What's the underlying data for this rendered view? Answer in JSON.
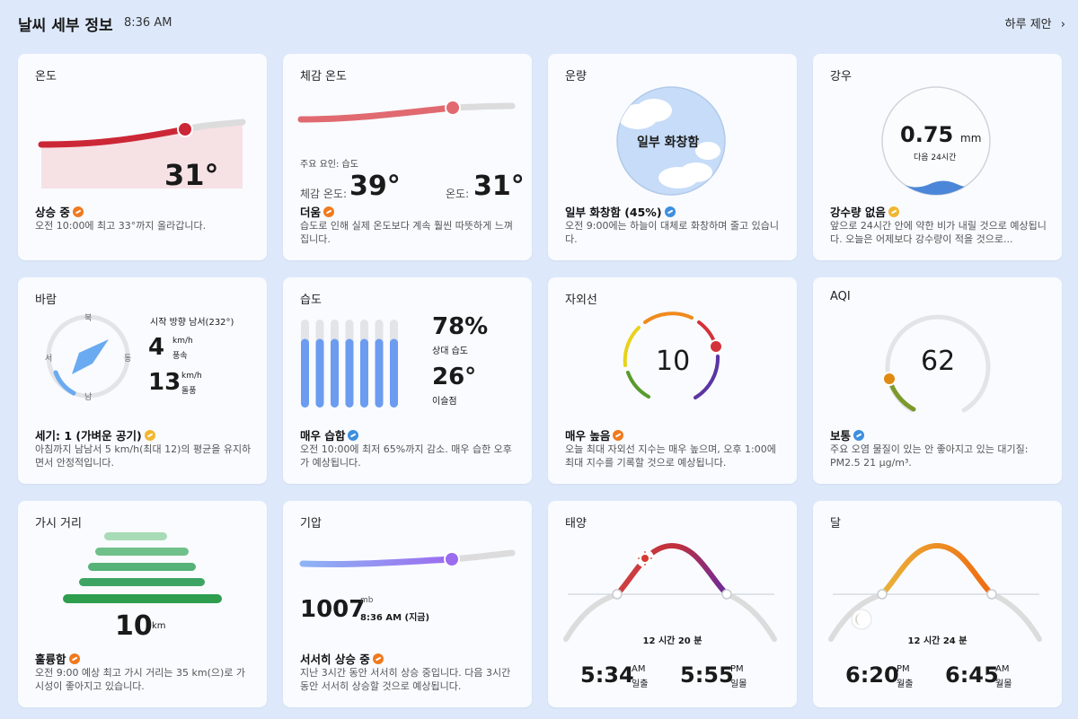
{
  "header": {
    "title": "날씨 세부 정보",
    "time": "8:36 AM",
    "daily_link": "하루 제안",
    "chevron_icon": "chevron-right-icon"
  },
  "temperature": {
    "title": "온도",
    "value": "31°",
    "status": "상승 중",
    "status_icon": "trend-up-icon",
    "desc": "오전 10:00에 최고 33°까지 올라갑니다."
  },
  "feels_like": {
    "title": "체감 온도",
    "factor": "주요 요인: 습도",
    "feels_label": "체감 온도:",
    "feels_value": "39°",
    "temp_label": "온도:",
    "temp_value": "31°",
    "status": "더움",
    "status_icon": "trend-up-icon",
    "desc": "습도로 인해 실제 온도보다 계속 훨씬 따뜻하게 느껴집니다."
  },
  "cloud": {
    "title": "운량",
    "circle_label": "일부 화창함",
    "status": "일부 화창함 (45%)",
    "status_icon": "trend-down-icon",
    "desc": "오전 9:00에는 하늘이 대체로 화창하며 줄고 있습니다."
  },
  "rain": {
    "title": "강우",
    "value": "0.75",
    "unit": "mm",
    "period": "다음 24시간",
    "status": "강수량 없음",
    "status_icon": "trend-flat-icon",
    "desc": "앞으로 24시간 안에 약한 비가 내릴 것으로 예상됩니다. 오늘은 어제보다 강수량이 적을 것으로..."
  },
  "wind": {
    "title": "바람",
    "compass": {
      "n": "북",
      "s": "남",
      "e": "동",
      "w": "서"
    },
    "direction": "시작 방향 남서(232°)",
    "speed_value": "4",
    "speed_unit": "km/h",
    "speed_label": "풍속",
    "gust_value": "13",
    "gust_unit": "km/h",
    "gust_label": "돌풍",
    "status": "세기: 1 (가벼운 공기)",
    "status_icon": "trend-flat-icon",
    "desc": "아침까지 남남서 5 km/h(최대 12)의 평균을 유지하면서 안정적입니다."
  },
  "humidity": {
    "title": "습도",
    "relative_value": "78%",
    "relative_label": "상대 습도",
    "dew_value": "26°",
    "dew_label": "이슬점",
    "level": 0.78,
    "status": "매우 습함",
    "status_icon": "trend-down-icon",
    "desc": "오전 10:00에 최저 65%까지 감소. 매우 습한 오후가 예상됩니다."
  },
  "uv": {
    "title": "자외선",
    "value": "10",
    "status": "매우 높음",
    "status_icon": "trend-up-icon",
    "desc": "오늘 최대 자외선 지수는 매우 높으며, 오후 1:00에 최대 지수를 기록할 것으로 예상됩니다."
  },
  "aqi": {
    "title": "AQI",
    "value": "62",
    "status": "보통",
    "status_icon": "trend-down-icon",
    "desc": "주요 오염 물질이 있는 안 좋아지고 있는 대기질: PM2.5 21 μg/m³."
  },
  "visibility": {
    "title": "가시 거리",
    "value": "10",
    "unit": "km",
    "status": "훌륭함",
    "status_icon": "trend-up-icon",
    "desc": "오전 9:00 예상 최고 가시 거리는 35 km(으)로 가시성이 좋아지고 있습니다."
  },
  "pressure": {
    "title": "기압",
    "value": "1007",
    "unit": "mb",
    "time": "8:36 AM (지금)",
    "status": "서서히 상승 중",
    "status_icon": "trend-up-icon",
    "desc": "지난 3시간 동안 서서히 상승 중입니다. 다음 3시간 동안 서서히 상승할 것으로 예상됩니다."
  },
  "sun": {
    "title": "태양",
    "duration": "12 시간 20 분",
    "rise_time": "5:34",
    "rise_ampm": "AM",
    "rise_label": "일출",
    "set_time": "5:55",
    "set_ampm": "PM",
    "set_label": "일몰"
  },
  "moon": {
    "title": "달",
    "duration": "12 시간 24 분",
    "rise_time": "6:20",
    "rise_ampm": "PM",
    "rise_label": "월출",
    "set_time": "6:45",
    "set_ampm": "AM",
    "set_label": "월몰"
  },
  "colors": {
    "temp_line": "#cc2736",
    "feels_line": "#e06a70",
    "humidity_bar": "#6b9cf0",
    "wind_arrow": "#6aaaf0",
    "pressure_dot": "#9b6bf0",
    "visibility_green": "#2e9e4e"
  }
}
